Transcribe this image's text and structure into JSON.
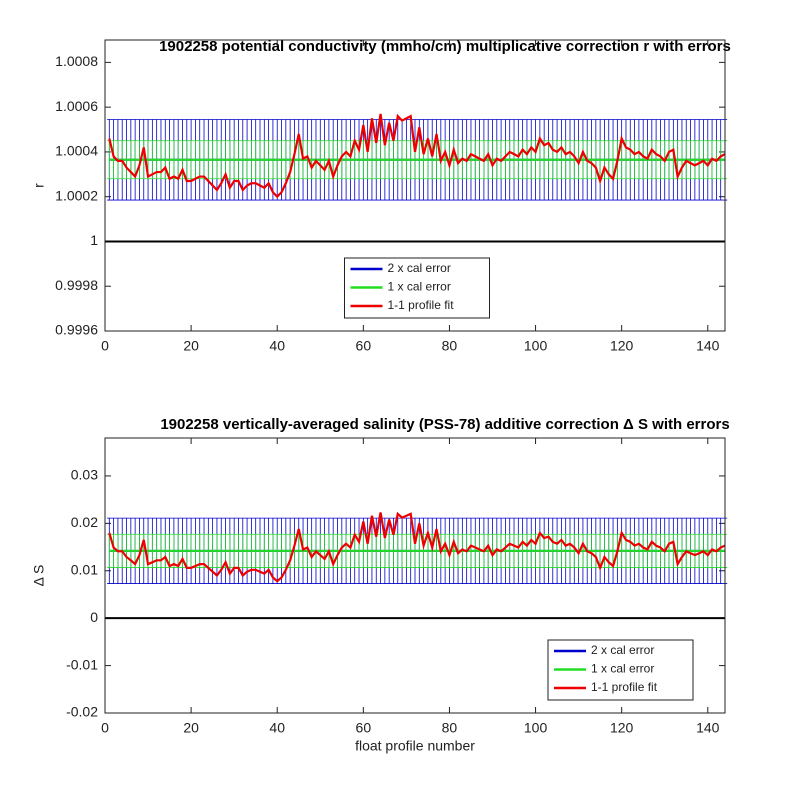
{
  "chart_data": [
    {
      "type": "errorbar-line",
      "title": "1902258 potential conductivity (mmho/cm) multiplicative correction r with errors",
      "y_label": "r",
      "xlim": [
        0,
        144
      ],
      "xticks": [
        0,
        20,
        40,
        60,
        80,
        100,
        120,
        140
      ],
      "ylim": [
        0.9996,
        1.0009
      ],
      "yticks": [
        0.9996,
        0.9998,
        1,
        1.0002,
        1.0004,
        1.0006,
        1.0008
      ],
      "reference_line": 1,
      "legend": "lower center",
      "x": [
        1,
        2,
        3,
        4,
        5,
        6,
        7,
        8,
        9,
        10,
        11,
        12,
        13,
        14,
        15,
        16,
        17,
        18,
        19,
        20,
        21,
        22,
        23,
        24,
        25,
        26,
        27,
        28,
        29,
        30,
        31,
        32,
        33,
        34,
        35,
        36,
        37,
        38,
        39,
        40,
        41,
        42,
        43,
        44,
        45,
        46,
        47,
        48,
        49,
        50,
        51,
        52,
        53,
        54,
        55,
        56,
        57,
        58,
        59,
        60,
        61,
        62,
        63,
        64,
        65,
        66,
        67,
        68,
        69,
        70,
        71,
        72,
        73,
        74,
        75,
        76,
        77,
        78,
        79,
        80,
        81,
        82,
        83,
        84,
        85,
        86,
        87,
        88,
        89,
        90,
        91,
        92,
        93,
        94,
        95,
        96,
        97,
        98,
        99,
        100,
        101,
        102,
        103,
        104,
        105,
        106,
        107,
        108,
        109,
        110,
        111,
        112,
        113,
        114,
        115,
        116,
        117,
        118,
        119,
        120,
        121,
        122,
        123,
        124,
        125,
        126,
        127,
        128,
        129,
        130,
        131,
        132,
        133,
        134,
        135,
        136,
        137,
        138,
        139,
        140,
        141,
        142,
        143,
        144
      ],
      "series": [
        {
          "name": "2 x cal error",
          "color": "#0000cc",
          "value": 1.000365,
          "error": 0.00018
        },
        {
          "name": "1 x cal error",
          "color": "#22dd22",
          "value": 1.000365,
          "error": 8.5e-05
        },
        {
          "name": "1-1 profile fit",
          "color": "#ee0000",
          "values": [
            1.00046,
            1.00038,
            1.00036,
            1.00036,
            1.00033,
            1.00031,
            1.00029,
            1.00034,
            1.00042,
            1.00029,
            1.0003,
            1.00031,
            1.00031,
            1.00033,
            1.00028,
            1.00029,
            1.00028,
            1.00032,
            1.00027,
            1.00027,
            1.00028,
            1.00029,
            1.00029,
            1.00027,
            1.00025,
            1.00023,
            1.00026,
            1.0003,
            1.00024,
            1.00027,
            1.00027,
            1.00023,
            1.00025,
            1.00026,
            1.00026,
            1.00025,
            1.00024,
            1.00026,
            1.00022,
            1.0002,
            1.00022,
            1.00026,
            1.00031,
            1.00039,
            1.00048,
            1.00037,
            1.00038,
            1.00033,
            1.00036,
            1.00034,
            1.00032,
            1.00036,
            1.00029,
            1.00034,
            1.00038,
            1.0004,
            1.00038,
            1.00045,
            1.00041,
            1.00052,
            1.0004,
            1.00055,
            1.00044,
            1.00057,
            1.00043,
            1.00053,
            1.00045,
            1.00056,
            1.00054,
            1.00055,
            1.00056,
            1.0004,
            1.00051,
            1.00039,
            1.00046,
            1.00038,
            1.00048,
            1.00036,
            1.0004,
            1.00034,
            1.00041,
            1.00035,
            1.00037,
            1.00036,
            1.00039,
            1.00038,
            1.00037,
            1.00036,
            1.00039,
            1.00034,
            1.00037,
            1.00036,
            1.00038,
            1.0004,
            1.00039,
            1.00038,
            1.00041,
            1.00039,
            1.00042,
            1.0004,
            1.00046,
            1.00043,
            1.00044,
            1.00041,
            1.0004,
            1.00042,
            1.00039,
            1.0004,
            1.00038,
            1.00035,
            1.0004,
            1.00036,
            1.00035,
            1.00033,
            1.00027,
            1.00033,
            1.0003,
            1.00028,
            1.00036,
            1.00046,
            1.00042,
            1.00041,
            1.00039,
            1.0004,
            1.00038,
            1.00037,
            1.00041,
            1.00039,
            1.00038,
            1.00036,
            1.0004,
            1.00041,
            1.00029,
            1.00033,
            1.00036,
            1.00035,
            1.00034,
            1.00035,
            1.00036,
            1.00034,
            1.00037,
            1.00036,
            1.00038,
            1.00039
          ]
        }
      ]
    },
    {
      "type": "errorbar-line",
      "title": "1902258 vertically-averaged salinity (PSS-78) additive correction Δ S with errors",
      "y_label": "Δ S",
      "x_label": "float profile number",
      "xlim": [
        0,
        144
      ],
      "xticks": [
        0,
        20,
        40,
        60,
        80,
        100,
        120,
        140
      ],
      "ylim": [
        -0.02,
        0.038
      ],
      "yticks": [
        -0.02,
        -0.01,
        0,
        0.01,
        0.02,
        0.03
      ],
      "reference_line": 0,
      "legend": "lower right",
      "x": [
        1,
        2,
        3,
        4,
        5,
        6,
        7,
        8,
        9,
        10,
        11,
        12,
        13,
        14,
        15,
        16,
        17,
        18,
        19,
        20,
        21,
        22,
        23,
        24,
        25,
        26,
        27,
        28,
        29,
        30,
        31,
        32,
        33,
        34,
        35,
        36,
        37,
        38,
        39,
        40,
        41,
        42,
        43,
        44,
        45,
        46,
        47,
        48,
        49,
        50,
        51,
        52,
        53,
        54,
        55,
        56,
        57,
        58,
        59,
        60,
        61,
        62,
        63,
        64,
        65,
        66,
        67,
        68,
        69,
        70,
        71,
        72,
        73,
        74,
        75,
        76,
        77,
        78,
        79,
        80,
        81,
        82,
        83,
        84,
        85,
        86,
        87,
        88,
        89,
        90,
        91,
        92,
        93,
        94,
        95,
        96,
        97,
        98,
        99,
        100,
        101,
        102,
        103,
        104,
        105,
        106,
        107,
        108,
        109,
        110,
        111,
        112,
        113,
        114,
        115,
        116,
        117,
        118,
        119,
        120,
        121,
        122,
        123,
        124,
        125,
        126,
        127,
        128,
        129,
        130,
        131,
        132,
        133,
        134,
        135,
        136,
        137,
        138,
        139,
        140,
        141,
        142,
        143,
        144
      ],
      "series": [
        {
          "name": "2 x cal error",
          "color": "#0000cc",
          "value": 0.0142,
          "error": 0.0069
        },
        {
          "name": "1 x cal error",
          "color": "#22dd22",
          "value": 0.0142,
          "error": 0.0035
        },
        {
          "name": "1-1 profile fit",
          "color": "#ee0000",
          "values": [
            0.018,
            0.0149,
            0.0141,
            0.0141,
            0.0129,
            0.0122,
            0.0114,
            0.0133,
            0.0165,
            0.0114,
            0.0118,
            0.0122,
            0.0122,
            0.0129,
            0.011,
            0.0114,
            0.011,
            0.0125,
            0.0106,
            0.0106,
            0.011,
            0.0114,
            0.0114,
            0.0106,
            0.0098,
            0.009,
            0.0102,
            0.0118,
            0.0094,
            0.0106,
            0.0106,
            0.009,
            0.0098,
            0.0102,
            0.0102,
            0.0098,
            0.0094,
            0.0102,
            0.0086,
            0.0078,
            0.0086,
            0.0102,
            0.0122,
            0.0153,
            0.0188,
            0.0145,
            0.0149,
            0.0129,
            0.0141,
            0.0133,
            0.0125,
            0.0141,
            0.0114,
            0.0133,
            0.0149,
            0.0157,
            0.0149,
            0.0176,
            0.0161,
            0.0204,
            0.0157,
            0.0216,
            0.0172,
            0.0223,
            0.0169,
            0.0208,
            0.0176,
            0.022,
            0.0212,
            0.0216,
            0.022,
            0.0157,
            0.02,
            0.0153,
            0.018,
            0.0149,
            0.0188,
            0.0141,
            0.0157,
            0.0133,
            0.0161,
            0.0137,
            0.0145,
            0.0141,
            0.0153,
            0.0149,
            0.0145,
            0.0141,
            0.0153,
            0.0133,
            0.0145,
            0.0141,
            0.0149,
            0.0157,
            0.0153,
            0.0149,
            0.0161,
            0.0153,
            0.0165,
            0.0157,
            0.018,
            0.0169,
            0.0172,
            0.0161,
            0.0157,
            0.0165,
            0.0153,
            0.0157,
            0.0149,
            0.0137,
            0.0157,
            0.0141,
            0.0137,
            0.0129,
            0.0106,
            0.0129,
            0.0118,
            0.011,
            0.0141,
            0.018,
            0.0165,
            0.0161,
            0.0153,
            0.0157,
            0.0149,
            0.0145,
            0.0161,
            0.0153,
            0.0149,
            0.0141,
            0.0157,
            0.0161,
            0.0114,
            0.0129,
            0.0141,
            0.0137,
            0.0133,
            0.0137,
            0.0141,
            0.0133,
            0.0145,
            0.0141,
            0.0149,
            0.0153
          ]
        }
      ]
    }
  ]
}
